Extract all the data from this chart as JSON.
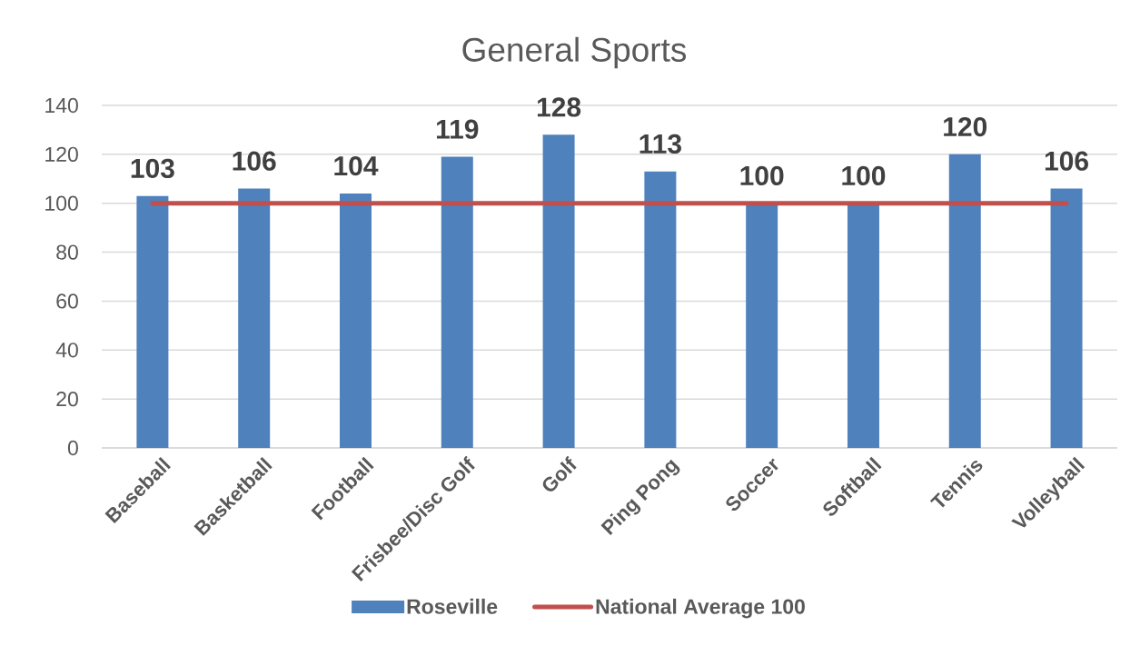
{
  "chart_data": {
    "type": "bar",
    "title": "General Sports",
    "categories": [
      "Baseball",
      "Basketball",
      "Football",
      "Frisbee/Disc Golf",
      "Golf",
      "Ping Pong",
      "Soccer",
      "Softball",
      "Tennis",
      "Volleyball"
    ],
    "series": [
      {
        "name": "Roseville",
        "color": "#4f81bd",
        "values": [
          103,
          106,
          104,
          119,
          128,
          113,
          100,
          100,
          120,
          106
        ],
        "value_labels": [
          "103",
          "106",
          "104",
          "119",
          "128",
          "113",
          "100",
          "100",
          "120",
          "106"
        ]
      },
      {
        "name": "National Average 100",
        "type": "line",
        "color": "#c0504d",
        "line_style": "solid",
        "values": [
          100,
          100,
          100,
          100,
          100,
          100,
          100,
          100,
          100,
          100
        ]
      }
    ],
    "ylim": [
      0,
      140
    ],
    "yticks": [
      0,
      20,
      40,
      60,
      80,
      100,
      120,
      140
    ],
    "grid": "y",
    "legend": "bottom"
  }
}
